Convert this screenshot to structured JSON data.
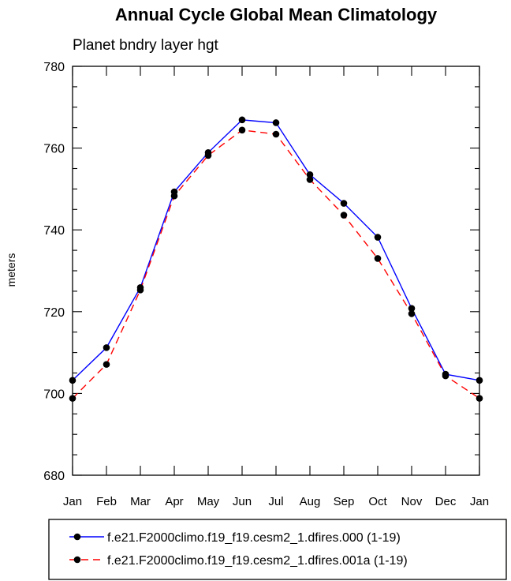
{
  "chart_data": {
    "type": "line",
    "title": "Annual Cycle Global Mean Climatology",
    "subtitle": "Planet bndry layer hgt",
    "xlabel": "",
    "ylabel": "meters",
    "ylim": [
      680,
      780
    ],
    "yticks": [
      680,
      700,
      720,
      740,
      760,
      780
    ],
    "categories": [
      "Jan",
      "Feb",
      "Mar",
      "Apr",
      "May",
      "Jun",
      "Jul",
      "Aug",
      "Sep",
      "Oct",
      "Nov",
      "Dec",
      "Jan"
    ],
    "series": [
      {
        "name": "f.e21.F2000climo.f19_f19.cesm2_1.dfires.000 (1-19)",
        "color": "#0000ff",
        "dash": "solid",
        "values": [
          703.2,
          711.2,
          725.9,
          749.3,
          758.9,
          766.9,
          766.2,
          753.5,
          746.5,
          738.2,
          720.8,
          704.7,
          703.2
        ]
      },
      {
        "name": "f.e21.F2000climo.f19_f19.cesm2_1.dfires.001a (1-19)",
        "color": "#ff0000",
        "dash": "dashed",
        "values": [
          698.8,
          707.1,
          725.3,
          748.3,
          758.2,
          764.4,
          763.4,
          752.3,
          743.6,
          733.0,
          719.5,
          704.3,
          698.8
        ]
      }
    ],
    "legend_position": "bottom",
    "grid": false
  }
}
